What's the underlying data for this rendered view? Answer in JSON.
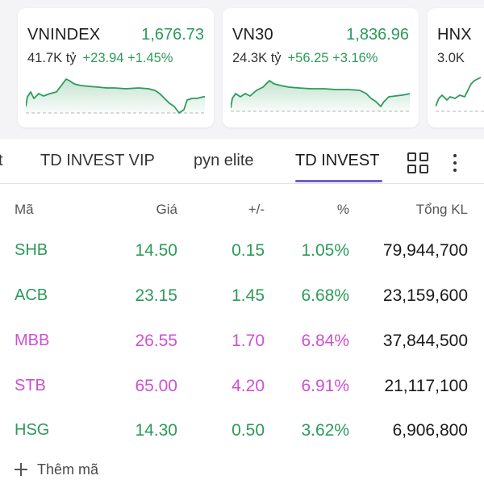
{
  "colors": {
    "up": "#2c9a5a",
    "ceiling": "#cf4fd2",
    "tab_accent": "#6e5fc9"
  },
  "index_cards": [
    {
      "name": "VNINDEX",
      "value": "1,676.73",
      "volume": "41.7K tỷ",
      "change": "+23.94 +1.45%"
    },
    {
      "name": "VN30",
      "value": "1,836.96",
      "volume": "24.3K tỷ",
      "change": "+56.25 +3.16%"
    },
    {
      "name": "HNX",
      "value": "",
      "volume": "3.0K",
      "change": ""
    }
  ],
  "tabs": {
    "partial_label": "t",
    "items": [
      "TD INVEST VIP",
      "pyn elite",
      "TD INVEST"
    ],
    "active": "TD INVEST",
    "grid_icon": "grid-view-icon",
    "more_icon": "more-vertical-icon"
  },
  "table": {
    "headers": {
      "symbol": "Mã",
      "price": "Giá",
      "delta": "+/-",
      "percent": "%",
      "volume": "Tổng KL"
    },
    "rows": [
      {
        "symbol": "SHB",
        "price": "14.50",
        "delta": "0.15",
        "percent": "1.05%",
        "volume": "79,944,700",
        "state": "up"
      },
      {
        "symbol": "ACB",
        "price": "23.15",
        "delta": "1.45",
        "percent": "6.68%",
        "volume": "23,159,600",
        "state": "up"
      },
      {
        "symbol": "MBB",
        "price": "26.55",
        "delta": "1.70",
        "percent": "6.84%",
        "volume": "37,844,500",
        "state": "ceiling"
      },
      {
        "symbol": "STB",
        "price": "65.00",
        "delta": "4.20",
        "percent": "6.91%",
        "volume": "21,117,100",
        "state": "ceiling"
      },
      {
        "symbol": "HSG",
        "price": "14.30",
        "delta": "0.50",
        "percent": "3.62%",
        "volume": "6,906,800",
        "state": "up"
      }
    ]
  },
  "add_symbol": {
    "label": "Thêm mã",
    "icon": "plus-icon"
  }
}
